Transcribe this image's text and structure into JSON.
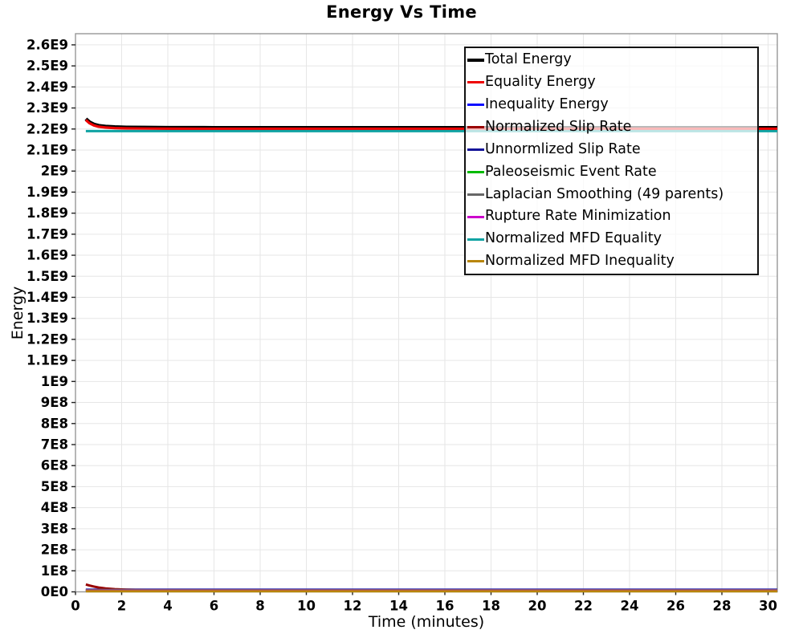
{
  "chart_data": {
    "type": "line",
    "title": "Energy Vs Time",
    "xlabel": "Time (minutes)",
    "ylabel": "Energy",
    "xlim": [
      0,
      30.4
    ],
    "ylim": [
      0,
      2653000000.0
    ],
    "grid": true,
    "legend_position": "top-right-inside",
    "xticks": [
      0,
      2,
      4,
      6,
      8,
      10,
      12,
      14,
      16,
      18,
      20,
      22,
      24,
      26,
      28,
      30
    ],
    "xtick_labels": [
      "0",
      "2",
      "4",
      "6",
      "8",
      "10",
      "12",
      "14",
      "16",
      "18",
      "20",
      "22",
      "24",
      "26",
      "28",
      "30"
    ],
    "ytick_step": 100000000.0,
    "yticks": [
      0,
      100000000.0,
      200000000.0,
      300000000.0,
      400000000.0,
      500000000.0,
      600000000.0,
      700000000.0,
      800000000.0,
      900000000.0,
      1000000000.0,
      1100000000.0,
      1200000000.0,
      1300000000.0,
      1400000000.0,
      1500000000.0,
      1600000000.0,
      1700000000.0,
      1800000000.0,
      1900000000.0,
      2000000000.0,
      2100000000.0,
      2200000000.0,
      2300000000.0,
      2400000000.0,
      2500000000.0,
      2600000000.0
    ],
    "ytick_labels": [
      "0E0",
      "1E8",
      "2E8",
      "3E8",
      "4E8",
      "5E8",
      "6E8",
      "7E8",
      "8E8",
      "9E8",
      "1E9",
      "1.1E9",
      "1.2E9",
      "1.3E9",
      "1.4E9",
      "1.5E9",
      "1.6E9",
      "1.7E9",
      "1.8E9",
      "1.9E9",
      "2E9",
      "2.1E9",
      "2.2E9",
      "2.3E9",
      "2.4E9",
      "2.5E9",
      "2.6E9"
    ],
    "x": [
      0.45,
      0.6,
      0.8,
      1.0,
      1.3,
      1.7,
      2.2,
      3,
      4,
      6,
      10,
      15,
      20,
      25,
      30.4
    ],
    "series": [
      {
        "name": "Total Energy",
        "color": "#000000",
        "width": 4.5,
        "values": [
          2248000000.0,
          2233000000.0,
          2222000000.0,
          2216000000.0,
          2212000000.0,
          2209500000.0,
          2208000000.0,
          2207000000.0,
          2206500000.0,
          2206000000.0,
          2206000000.0,
          2206000000.0,
          2206000000.0,
          2206000000.0,
          2206000000.0
        ]
      },
      {
        "name": "Equality Energy",
        "color": "#ee0000",
        "width": 3.2,
        "values": [
          2243000000.0,
          2228000000.0,
          2217000000.0,
          2211000000.0,
          2207000000.0,
          2204500000.0,
          2203000000.0,
          2202000000.0,
          2201500000.0,
          2201000000.0,
          2201000000.0,
          2201000000.0,
          2201000000.0,
          2201000000.0,
          2201000000.0
        ]
      },
      {
        "name": "Inequality Energy",
        "color": "#0d0dff",
        "width": 3,
        "values": [
          10500000.0,
          10500000.0,
          10500000.0,
          10500000.0,
          10500000.0,
          10500000.0,
          10500000.0,
          10500000.0,
          10500000.0,
          10500000.0,
          10500000.0,
          10500000.0,
          10500000.0,
          10500000.0,
          10500000.0
        ]
      },
      {
        "name": "Normalized Slip Rate",
        "color": "#990000",
        "width": 3,
        "values": [
          35000000.0,
          30000000.0,
          25000000.0,
          20500000.0,
          16500000.0,
          13000000.0,
          10500000.0,
          8500000.0,
          8000000.0,
          7500000.0,
          7500000.0,
          7500000.0,
          7500000.0,
          7500000.0,
          7500000.0
        ]
      },
      {
        "name": "Unnormlized Slip Rate",
        "color": "#151599",
        "width": 3,
        "values": [
          7200000.0,
          7200000.0,
          7200000.0,
          7200000.0,
          7200000.0,
          7200000.0,
          7200000.0,
          7200000.0,
          7200000.0,
          7200000.0,
          7200000.0,
          7200000.0,
          7200000.0,
          7200000.0,
          7200000.0
        ]
      },
      {
        "name": "Paleoseismic Event Rate",
        "color": "#00bb00",
        "width": 3,
        "values": [
          6000000.0,
          6000000.0,
          6000000.0,
          6000000.0,
          6000000.0,
          6000000.0,
          6000000.0,
          6000000.0,
          6000000.0,
          6000000.0,
          6000000.0,
          6000000.0,
          6000000.0,
          6000000.0,
          6000000.0
        ]
      },
      {
        "name": "Laplacian Smoothing (49 parents)",
        "color": "#666666",
        "width": 3,
        "values": [
          9000000.0,
          9000000.0,
          9000000.0,
          9000000.0,
          9000000.0,
          9000000.0,
          9000000.0,
          9000000.0,
          9000000.0,
          9000000.0,
          9000000.0,
          9000000.0,
          9000000.0,
          9000000.0,
          9000000.0
        ]
      },
      {
        "name": "Rupture Rate Minimization",
        "color": "#cc00cc",
        "width": 3,
        "values": [
          4500000.0,
          4500000.0,
          4500000.0,
          4500000.0,
          4500000.0,
          4500000.0,
          4500000.0,
          4500000.0,
          4500000.0,
          4500000.0,
          4500000.0,
          4500000.0,
          4500000.0,
          4500000.0,
          4500000.0
        ]
      },
      {
        "name": "Normalized MFD Equality",
        "color": "#0fa3a3",
        "width": 3,
        "values": [
          2190000000.0,
          2190000000.0,
          2190000000.0,
          2190000000.0,
          2190000000.0,
          2190000000.0,
          2190000000.0,
          2190000000.0,
          2190000000.0,
          2190000000.0,
          2190000000.0,
          2190000000.0,
          2190000000.0,
          2190000000.0,
          2190000000.0
        ]
      },
      {
        "name": "Normalized MFD Inequality",
        "color": "#b8860b",
        "width": 3,
        "values": [
          2800000.0,
          2800000.0,
          2800000.0,
          2800000.0,
          2800000.0,
          2800000.0,
          2800000.0,
          2800000.0,
          2800000.0,
          2800000.0,
          2800000.0,
          2800000.0,
          2800000.0,
          2800000.0,
          2800000.0
        ]
      }
    ],
    "style": {
      "grid_color": "#e6e6e6",
      "border_color": "#979797",
      "tick_color": "#222222",
      "text_color": "#000000",
      "legend_border_color": "#111111"
    }
  }
}
